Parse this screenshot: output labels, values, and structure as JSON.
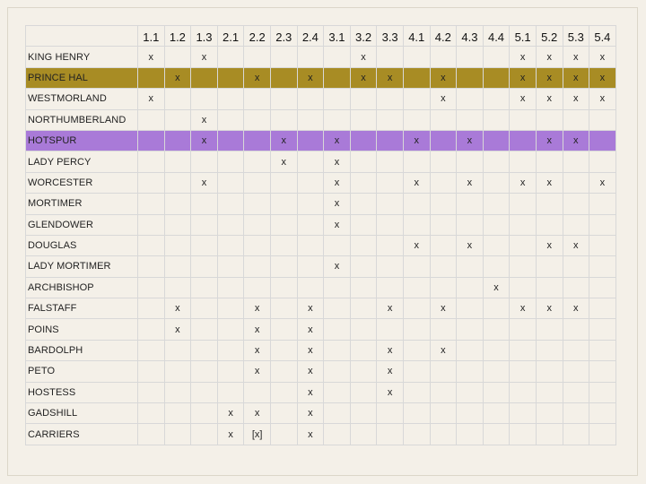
{
  "scenes": [
    "1.1",
    "1.2",
    "1.3",
    "2.1",
    "2.2",
    "2.3",
    "2.4",
    "3.1",
    "3.2",
    "3.3",
    "4.1",
    "4.2",
    "4.3",
    "4.4",
    "5.1",
    "5.2",
    "5.3",
    "5.4"
  ],
  "highlight_colors": {
    "gold": "#a88c24",
    "purple": "#a97ad8"
  },
  "rows": [
    {
      "name": "KING HENRY",
      "highlight": "",
      "cells": [
        "x",
        "",
        "x",
        "",
        "",
        "",
        "",
        "",
        "x",
        "",
        "",
        "",
        "",
        "",
        "x",
        "x",
        "x",
        "x"
      ]
    },
    {
      "name": "PRINCE HAL",
      "highlight": "gold",
      "cells": [
        "",
        "x",
        "",
        "",
        "x",
        "",
        "x",
        "",
        "x",
        "x",
        "",
        "x",
        "",
        "",
        "x",
        "x",
        "x",
        "x"
      ]
    },
    {
      "name": "WESTMORLAND",
      "highlight": "",
      "cells": [
        "x",
        "",
        "",
        "",
        "",
        "",
        "",
        "",
        "",
        "",
        "",
        "x",
        "",
        "",
        "x",
        "x",
        "x",
        "x"
      ]
    },
    {
      "name": "NORTHUMBERLAND",
      "highlight": "",
      "cells": [
        "",
        "",
        "x",
        "",
        "",
        "",
        "",
        "",
        "",
        "",
        "",
        "",
        "",
        "",
        "",
        "",
        "",
        ""
      ]
    },
    {
      "name": "HOTSPUR",
      "highlight": "purple",
      "cells": [
        "",
        "",
        "x",
        "",
        "",
        "x",
        "",
        "x",
        "",
        "",
        "x",
        "",
        "x",
        "",
        "",
        "x",
        "x",
        ""
      ]
    },
    {
      "name": "LADY PERCY",
      "highlight": "",
      "cells": [
        "",
        "",
        "",
        "",
        "",
        "x",
        "",
        "x",
        "",
        "",
        "",
        "",
        "",
        "",
        "",
        "",
        "",
        ""
      ]
    },
    {
      "name": "WORCESTER",
      "highlight": "",
      "cells": [
        "",
        "",
        "x",
        "",
        "",
        "",
        "",
        "x",
        "",
        "",
        "x",
        "",
        "x",
        "",
        "x",
        "x",
        "",
        "x"
      ]
    },
    {
      "name": "MORTIMER",
      "highlight": "",
      "cells": [
        "",
        "",
        "",
        "",
        "",
        "",
        "",
        "x",
        "",
        "",
        "",
        "",
        "",
        "",
        "",
        "",
        "",
        ""
      ]
    },
    {
      "name": "GLENDOWER",
      "highlight": "",
      "cells": [
        "",
        "",
        "",
        "",
        "",
        "",
        "",
        "x",
        "",
        "",
        "",
        "",
        "",
        "",
        "",
        "",
        "",
        ""
      ]
    },
    {
      "name": "DOUGLAS",
      "highlight": "",
      "cells": [
        "",
        "",
        "",
        "",
        "",
        "",
        "",
        "",
        "",
        "",
        "x",
        "",
        "x",
        "",
        "",
        "x",
        "x",
        ""
      ]
    },
    {
      "name": "LADY MORTIMER",
      "highlight": "",
      "cells": [
        "",
        "",
        "",
        "",
        "",
        "",
        "",
        "x",
        "",
        "",
        "",
        "",
        "",
        "",
        "",
        "",
        "",
        ""
      ]
    },
    {
      "name": "ARCHBISHOP",
      "highlight": "",
      "cells": [
        "",
        "",
        "",
        "",
        "",
        "",
        "",
        "",
        "",
        "",
        "",
        "",
        "",
        "x",
        "",
        "",
        "",
        ""
      ]
    },
    {
      "name": "FALSTAFF",
      "highlight": "",
      "cells": [
        "",
        "x",
        "",
        "",
        "x",
        "",
        "x",
        "",
        "",
        "x",
        "",
        "x",
        "",
        "",
        "x",
        "x",
        "x",
        ""
      ]
    },
    {
      "name": "POINS",
      "highlight": "",
      "cells": [
        "",
        "x",
        "",
        "",
        "x",
        "",
        "x",
        "",
        "",
        "",
        "",
        "",
        "",
        "",
        "",
        "",
        "",
        ""
      ]
    },
    {
      "name": "BARDOLPH",
      "highlight": "",
      "cells": [
        "",
        "",
        "",
        "",
        "x",
        "",
        "x",
        "",
        "",
        "x",
        "",
        "x",
        "",
        "",
        "",
        "",
        "",
        ""
      ]
    },
    {
      "name": "PETO",
      "highlight": "",
      "cells": [
        "",
        "",
        "",
        "",
        "x",
        "",
        "x",
        "",
        "",
        "x",
        "",
        "",
        "",
        "",
        "",
        "",
        "",
        ""
      ]
    },
    {
      "name": "HOSTESS",
      "highlight": "",
      "cells": [
        "",
        "",
        "",
        "",
        "",
        "",
        "x",
        "",
        "",
        "x",
        "",
        "",
        "",
        "",
        "",
        "",
        "",
        ""
      ]
    },
    {
      "name": "GADSHILL",
      "highlight": "",
      "cells": [
        "",
        "",
        "",
        "x",
        "x",
        "",
        "x",
        "",
        "",
        "",
        "",
        "",
        "",
        "",
        "",
        "",
        "",
        ""
      ]
    },
    {
      "name": "CARRIERS",
      "highlight": "",
      "cells": [
        "",
        "",
        "",
        "x",
        "[x]",
        "",
        "x",
        "",
        "",
        "",
        "",
        "",
        "",
        "",
        "",
        "",
        "",
        ""
      ]
    }
  ]
}
